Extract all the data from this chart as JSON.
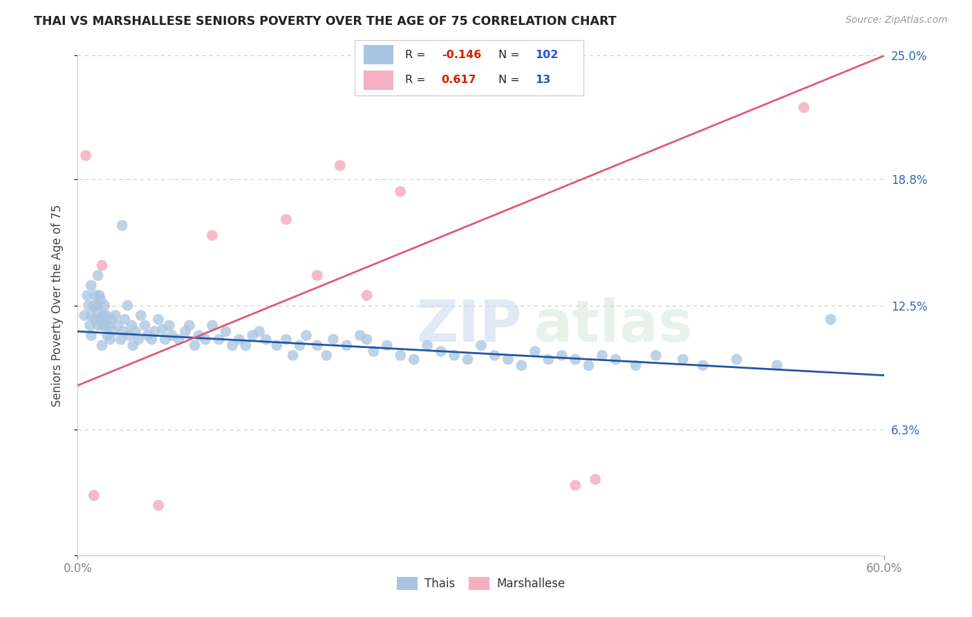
{
  "title": "THAI VS MARSHALLESE SENIORS POVERTY OVER THE AGE OF 75 CORRELATION CHART",
  "source": "Source: ZipAtlas.com",
  "ylabel": "Seniors Poverty Over the Age of 75",
  "xlim": [
    0.0,
    0.6
  ],
  "ylim": [
    0.0,
    0.25
  ],
  "ytick_positions": [
    0.0,
    0.063,
    0.125,
    0.188,
    0.25
  ],
  "ytick_labels": [
    "",
    "6.3%",
    "12.5%",
    "18.8%",
    "25.0%"
  ],
  "thai_color": "#a8c4e0",
  "marshallese_color": "#f5afc0",
  "thai_line_color": "#2255a0",
  "marshallese_line_color": "#e05878",
  "thai_R": -0.146,
  "thai_N": 102,
  "marshallese_R": 0.617,
  "marshallese_N": 13,
  "background_color": "#ffffff",
  "grid_color": "#cccccc",
  "thai_line_y0": 0.112,
  "thai_line_y1": 0.09,
  "marsh_line_y0": 0.085,
  "marsh_line_y1": 0.25,
  "thai_scatter_x": [
    0.005,
    0.007,
    0.008,
    0.009,
    0.01,
    0.01,
    0.01,
    0.012,
    0.013,
    0.013,
    0.015,
    0.015,
    0.015,
    0.015,
    0.016,
    0.017,
    0.017,
    0.018,
    0.018,
    0.019,
    0.02,
    0.02,
    0.021,
    0.022,
    0.023,
    0.024,
    0.025,
    0.026,
    0.028,
    0.03,
    0.032,
    0.033,
    0.034,
    0.035,
    0.037,
    0.038,
    0.04,
    0.041,
    0.043,
    0.045,
    0.047,
    0.05,
    0.052,
    0.055,
    0.057,
    0.06,
    0.063,
    0.065,
    0.068,
    0.07,
    0.075,
    0.08,
    0.083,
    0.087,
    0.09,
    0.095,
    0.1,
    0.105,
    0.11,
    0.115,
    0.12,
    0.125,
    0.13,
    0.135,
    0.14,
    0.148,
    0.155,
    0.16,
    0.165,
    0.17,
    0.178,
    0.185,
    0.19,
    0.2,
    0.21,
    0.215,
    0.22,
    0.23,
    0.24,
    0.25,
    0.26,
    0.27,
    0.28,
    0.29,
    0.3,
    0.31,
    0.32,
    0.33,
    0.34,
    0.35,
    0.36,
    0.37,
    0.38,
    0.39,
    0.4,
    0.415,
    0.43,
    0.45,
    0.465,
    0.49,
    0.52,
    0.56
  ],
  "thai_scatter_y": [
    0.12,
    0.13,
    0.125,
    0.115,
    0.135,
    0.12,
    0.11,
    0.125,
    0.118,
    0.13,
    0.14,
    0.125,
    0.115,
    0.122,
    0.13,
    0.118,
    0.128,
    0.115,
    0.105,
    0.12,
    0.125,
    0.115,
    0.12,
    0.11,
    0.115,
    0.108,
    0.118,
    0.112,
    0.12,
    0.115,
    0.108,
    0.165,
    0.112,
    0.118,
    0.125,
    0.11,
    0.115,
    0.105,
    0.112,
    0.108,
    0.12,
    0.115,
    0.11,
    0.108,
    0.112,
    0.118,
    0.113,
    0.108,
    0.115,
    0.11,
    0.108,
    0.112,
    0.115,
    0.105,
    0.11,
    0.108,
    0.115,
    0.108,
    0.112,
    0.105,
    0.108,
    0.105,
    0.11,
    0.112,
    0.108,
    0.105,
    0.108,
    0.1,
    0.105,
    0.11,
    0.105,
    0.1,
    0.108,
    0.105,
    0.11,
    0.108,
    0.102,
    0.105,
    0.1,
    0.098,
    0.105,
    0.102,
    0.1,
    0.098,
    0.105,
    0.1,
    0.098,
    0.095,
    0.102,
    0.098,
    0.1,
    0.098,
    0.095,
    0.1,
    0.098,
    0.095,
    0.1,
    0.098,
    0.095,
    0.098,
    0.095,
    0.118
  ],
  "marsh_scatter_x": [
    0.006,
    0.012,
    0.018,
    0.06,
    0.1,
    0.155,
    0.178,
    0.195,
    0.215,
    0.24,
    0.37,
    0.385,
    0.54
  ],
  "marsh_scatter_y": [
    0.2,
    0.03,
    0.145,
    0.025,
    0.16,
    0.168,
    0.14,
    0.195,
    0.13,
    0.182,
    0.035,
    0.038,
    0.224
  ]
}
